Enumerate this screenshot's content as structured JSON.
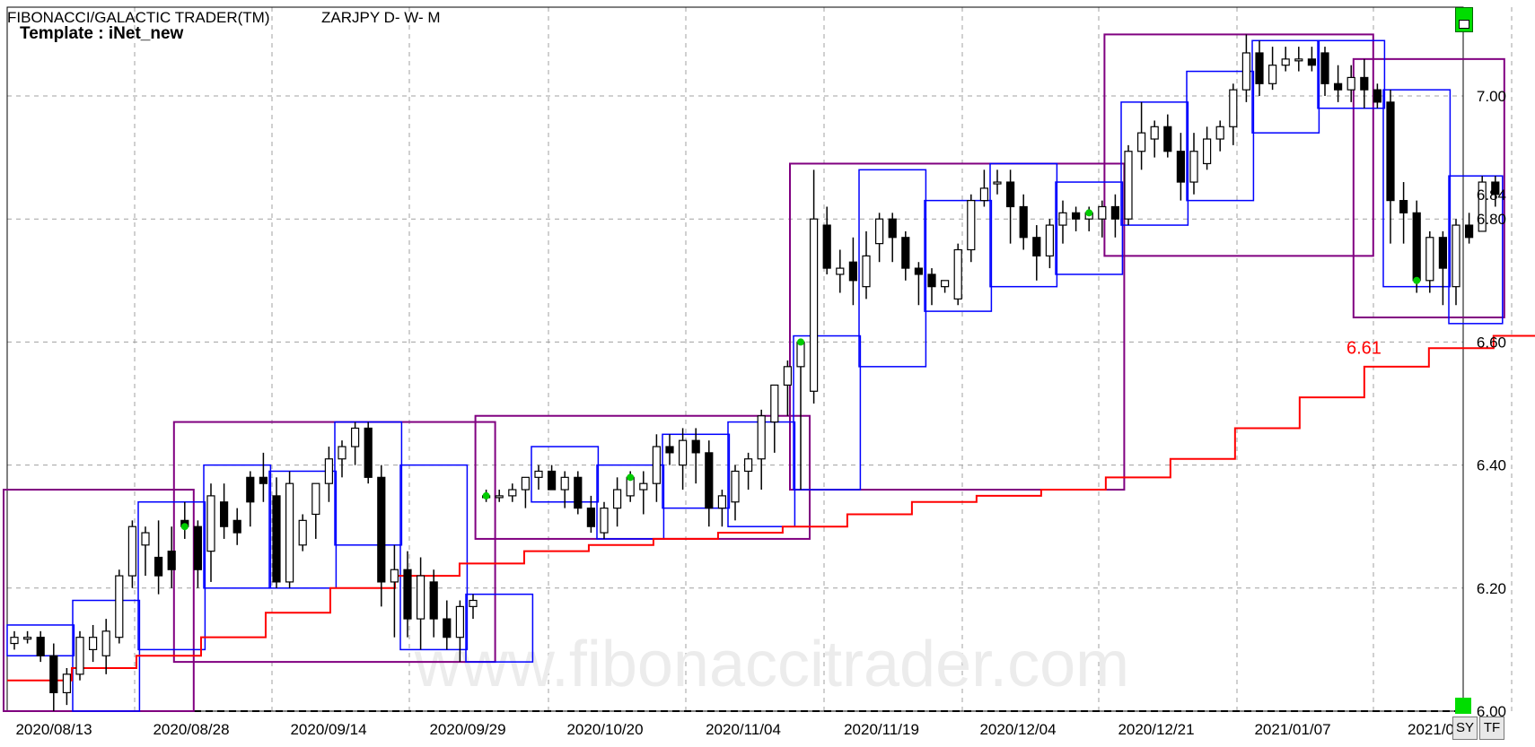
{
  "header": {
    "indicator": "FIBONACCI/GALACTIC TRADER(TM)",
    "symbol": "ZARJPY D- W- M",
    "template": "Template : iNet_new"
  },
  "watermark": "www.fibonaccitrader.com",
  "toolbar": {
    "sy_label": "SY",
    "tf_label": "TF"
  },
  "colors": {
    "monthly": "#800080",
    "weekly": "#0000ff",
    "stop": "#ff0000",
    "signal": "#00cc00",
    "candle": "#000000",
    "grid": "#a0a0a0"
  },
  "chart_data": {
    "type": "candlestick",
    "title": "ZARJPY D- W- M",
    "ylim": [
      6.0,
      7.1
    ],
    "y_ticks": [
      "6.00",
      "6.20",
      "6.40",
      "6.60",
      "6.80",
      "7.00"
    ],
    "x_tick_labels": [
      "2020/08/13",
      "2020/08/28",
      "2020/09/14",
      "2020/09/29",
      "2020/10/20",
      "2020/11/04",
      "2020/11/19",
      "2020/12/04",
      "2020/12/21",
      "2021/01/07",
      "2021/0"
    ],
    "last_price_label": "6.84",
    "stop_label": "6.61",
    "candles": [
      [
        6.11,
        6.13,
        6.1,
        6.12
      ],
      [
        6.12,
        6.13,
        6.11,
        6.12
      ],
      [
        6.12,
        6.13,
        6.08,
        6.09
      ],
      [
        6.09,
        6.11,
        6.0,
        6.03
      ],
      [
        6.03,
        6.07,
        6.01,
        6.06
      ],
      [
        6.06,
        6.13,
        6.05,
        6.12
      ],
      [
        6.1,
        6.14,
        6.08,
        6.12
      ],
      [
        6.09,
        6.15,
        6.06,
        6.13
      ],
      [
        6.12,
        6.23,
        6.11,
        6.22
      ],
      [
        6.22,
        6.31,
        6.2,
        6.3
      ],
      [
        6.27,
        6.3,
        6.22,
        6.29
      ],
      [
        6.25,
        6.31,
        6.19,
        6.22
      ],
      [
        6.26,
        6.3,
        6.2,
        6.23
      ],
      [
        6.31,
        6.34,
        6.28,
        6.3
      ],
      [
        6.3,
        6.31,
        6.2,
        6.23
      ],
      [
        6.26,
        6.37,
        6.21,
        6.35
      ],
      [
        6.34,
        6.37,
        6.28,
        6.3
      ],
      [
        6.31,
        6.33,
        6.27,
        6.29
      ],
      [
        6.38,
        6.39,
        6.3,
        6.34
      ],
      [
        6.38,
        6.42,
        6.34,
        6.37
      ],
      [
        6.35,
        6.38,
        6.2,
        6.21
      ],
      [
        6.21,
        6.39,
        6.2,
        6.37
      ],
      [
        6.27,
        6.32,
        6.26,
        6.31
      ],
      [
        6.32,
        6.37,
        6.28,
        6.37
      ],
      [
        6.37,
        6.43,
        6.34,
        6.41
      ],
      [
        6.41,
        6.44,
        6.38,
        6.43
      ],
      [
        6.43,
        6.47,
        6.4,
        6.46
      ],
      [
        6.46,
        6.47,
        6.37,
        6.38
      ],
      [
        6.38,
        6.4,
        6.17,
        6.21
      ],
      [
        6.21,
        6.27,
        6.12,
        6.23
      ],
      [
        6.23,
        6.26,
        6.12,
        6.15
      ],
      [
        6.15,
        6.25,
        6.1,
        6.22
      ],
      [
        6.21,
        6.23,
        6.12,
        6.15
      ],
      [
        6.15,
        6.18,
        6.1,
        6.12
      ],
      [
        6.12,
        6.18,
        6.08,
        6.17
      ],
      [
        6.17,
        6.19,
        6.15,
        6.18
      ],
      [
        6.35,
        6.36,
        6.34,
        6.35
      ],
      [
        6.35,
        6.36,
        6.34,
        6.35
      ],
      [
        6.35,
        6.37,
        6.34,
        6.36
      ],
      [
        6.36,
        6.38,
        6.33,
        6.38
      ],
      [
        6.38,
        6.4,
        6.36,
        6.39
      ],
      [
        6.39,
        6.4,
        6.36,
        6.36
      ],
      [
        6.36,
        6.39,
        6.33,
        6.38
      ],
      [
        6.38,
        6.39,
        6.32,
        6.33
      ],
      [
        6.33,
        6.35,
        6.29,
        6.3
      ],
      [
        6.29,
        6.34,
        6.28,
        6.33
      ],
      [
        6.33,
        6.38,
        6.3,
        6.36
      ],
      [
        6.35,
        6.39,
        6.34,
        6.38
      ],
      [
        6.36,
        6.39,
        6.32,
        6.37
      ],
      [
        6.37,
        6.45,
        6.34,
        6.43
      ],
      [
        6.43,
        6.45,
        6.4,
        6.42
      ],
      [
        6.4,
        6.46,
        6.36,
        6.44
      ],
      [
        6.44,
        6.46,
        6.37,
        6.42
      ],
      [
        6.42,
        6.44,
        6.3,
        6.33
      ],
      [
        6.33,
        6.36,
        6.3,
        6.35
      ],
      [
        6.34,
        6.4,
        6.31,
        6.39
      ],
      [
        6.39,
        6.42,
        6.36,
        6.41
      ],
      [
        6.41,
        6.49,
        6.36,
        6.48
      ],
      [
        6.47,
        6.53,
        6.42,
        6.53
      ],
      [
        6.53,
        6.57,
        6.48,
        6.56
      ],
      [
        6.56,
        6.6,
        6.36,
        6.6
      ],
      [
        6.52,
        6.88,
        6.5,
        6.8
      ],
      [
        6.79,
        6.82,
        6.71,
        6.72
      ],
      [
        6.71,
        6.75,
        6.68,
        6.72
      ],
      [
        6.73,
        6.77,
        6.66,
        6.7
      ],
      [
        6.69,
        6.78,
        6.67,
        6.74
      ],
      [
        6.76,
        6.81,
        6.73,
        6.8
      ],
      [
        6.8,
        6.81,
        6.73,
        6.77
      ],
      [
        6.77,
        6.78,
        6.7,
        6.72
      ],
      [
        6.72,
        6.73,
        6.66,
        6.71
      ],
      [
        6.71,
        6.72,
        6.66,
        6.69
      ],
      [
        6.69,
        6.7,
        6.68,
        6.7
      ],
      [
        6.67,
        6.76,
        6.66,
        6.75
      ],
      [
        6.75,
        6.84,
        6.73,
        6.83
      ],
      [
        6.83,
        6.88,
        6.82,
        6.85
      ],
      [
        6.86,
        6.88,
        6.84,
        6.86
      ],
      [
        6.86,
        6.88,
        6.76,
        6.82
      ],
      [
        6.82,
        6.84,
        6.75,
        6.77
      ],
      [
        6.77,
        6.79,
        6.7,
        6.74
      ],
      [
        6.74,
        6.8,
        6.72,
        6.79
      ],
      [
        6.79,
        6.83,
        6.76,
        6.81
      ],
      [
        6.81,
        6.82,
        6.78,
        6.8
      ],
      [
        6.8,
        6.82,
        6.78,
        6.81
      ],
      [
        6.8,
        6.83,
        6.77,
        6.82
      ],
      [
        6.82,
        6.84,
        6.77,
        6.8
      ],
      [
        6.8,
        6.92,
        6.79,
        6.91
      ],
      [
        6.91,
        6.99,
        6.88,
        6.94
      ],
      [
        6.93,
        6.96,
        6.9,
        6.95
      ],
      [
        6.95,
        6.97,
        6.9,
        6.91
      ],
      [
        6.91,
        6.94,
        6.83,
        6.86
      ],
      [
        6.86,
        6.94,
        6.84,
        6.91
      ],
      [
        6.89,
        6.95,
        6.88,
        6.93
      ],
      [
        6.93,
        6.96,
        6.91,
        6.95
      ],
      [
        6.95,
        7.02,
        6.92,
        7.01
      ],
      [
        7.01,
        7.1,
        6.99,
        7.07
      ],
      [
        7.07,
        7.09,
        7.0,
        7.02
      ],
      [
        7.02,
        7.08,
        7.01,
        7.05
      ],
      [
        7.05,
        7.08,
        7.04,
        7.06
      ],
      [
        7.06,
        7.08,
        7.04,
        7.06
      ],
      [
        7.06,
        7.08,
        7.04,
        7.05
      ],
      [
        7.07,
        7.08,
        7.0,
        7.02
      ],
      [
        7.02,
        7.05,
        6.99,
        7.01
      ],
      [
        7.01,
        7.05,
        6.99,
        7.03
      ],
      [
        7.03,
        7.06,
        6.98,
        7.01
      ],
      [
        7.01,
        7.02,
        6.98,
        6.99
      ],
      [
        6.99,
        7.01,
        6.76,
        6.83
      ],
      [
        6.83,
        6.86,
        6.76,
        6.81
      ],
      [
        6.81,
        6.83,
        6.68,
        6.7
      ],
      [
        6.7,
        6.78,
        6.68,
        6.77
      ],
      [
        6.77,
        6.78,
        6.66,
        6.72
      ],
      [
        6.69,
        6.8,
        6.66,
        6.79
      ],
      [
        6.79,
        6.81,
        6.76,
        6.77
      ],
      [
        6.78,
        6.87,
        6.78,
        6.86
      ],
      [
        6.86,
        6.87,
        6.82,
        6.84
      ]
    ],
    "monthly_boxes": [
      {
        "from": "2020/08/01",
        "to": "2020/08/31",
        "low": 6.0,
        "high": 6.36
      },
      {
        "from": "2020/09/01",
        "to": "2020/09/30",
        "low": 6.08,
        "high": 6.47
      },
      {
        "from": "2020/10/01",
        "to": "2020/10/31",
        "low": 6.28,
        "high": 6.48
      },
      {
        "from": "2020/11/01",
        "to": "2020/11/30",
        "low": 6.36,
        "high": 6.89
      },
      {
        "from": "2020/12/01",
        "to": "2020/12/31",
        "low": 6.74,
        "high": 7.1
      },
      {
        "from": "2021/01/01",
        "to": "2021/01/31",
        "low": 6.64,
        "high": 7.06
      }
    ],
    "weekly_boxes": [
      {
        "low": 6.09,
        "high": 6.14
      },
      {
        "low": 6.0,
        "high": 6.18
      },
      {
        "low": 6.1,
        "high": 6.34
      },
      {
        "low": 6.2,
        "high": 6.4
      },
      {
        "low": 6.2,
        "high": 6.39
      },
      {
        "low": 6.27,
        "high": 6.47
      },
      {
        "low": 6.1,
        "high": 6.4
      },
      {
        "low": 6.08,
        "high": 6.19
      },
      {
        "low": 6.34,
        "high": 6.43
      },
      {
        "low": 6.28,
        "high": 6.4
      },
      {
        "low": 6.33,
        "high": 6.45
      },
      {
        "low": 6.3,
        "high": 6.47
      },
      {
        "low": 6.36,
        "high": 6.61
      },
      {
        "low": 6.56,
        "high": 6.88
      },
      {
        "low": 6.65,
        "high": 6.83
      },
      {
        "low": 6.69,
        "high": 6.89
      },
      {
        "low": 6.71,
        "high": 6.86
      },
      {
        "low": 6.79,
        "high": 6.99
      },
      {
        "low": 6.83,
        "high": 7.04
      },
      {
        "low": 6.94,
        "high": 7.09
      },
      {
        "low": 6.98,
        "high": 7.09
      },
      {
        "low": 6.69,
        "high": 7.01
      },
      {
        "low": 6.63,
        "high": 6.87
      }
    ],
    "stop_steps": [
      6.05,
      6.07,
      6.09,
      6.12,
      6.16,
      6.2,
      6.22,
      6.24,
      6.26,
      6.27,
      6.28,
      6.29,
      6.3,
      6.32,
      6.34,
      6.35,
      6.36,
      6.38,
      6.41,
      6.46,
      6.51,
      6.56,
      6.59,
      6.61
    ]
  }
}
